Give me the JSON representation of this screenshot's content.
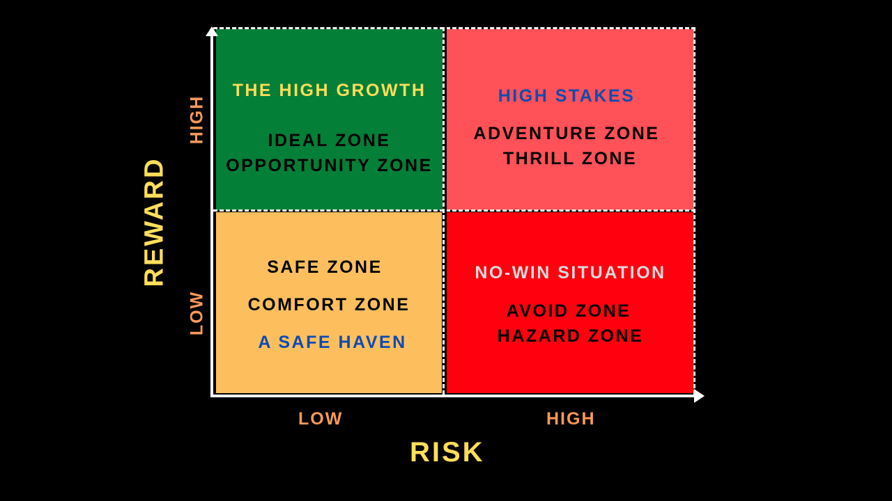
{
  "colors": {
    "background": "#000000",
    "high_growth": "#037F37",
    "high_stakes": "#FF5158",
    "safe_haven": "#FDBF5E",
    "no_win": "#FF000F",
    "axis_title": "#FFDE5A",
    "axis_tick": "#F79A5A",
    "blue_text": "#0F4BB0",
    "yellow_text": "#FFDE5A",
    "gray_text": "#DCDCDC"
  },
  "axes": {
    "x_title": "RISK",
    "y_title": "REWARD",
    "x_low": "LOW",
    "x_high": "HIGH",
    "y_low": "LOW",
    "y_high": "HIGH"
  },
  "quadrants": {
    "top_left": {
      "heading": "THE HIGH GROWTH",
      "line1": "IDEAL ZONE",
      "line2": "OPPORTUNITY ZONE"
    },
    "top_right": {
      "heading": "HIGH STAKES",
      "line1": "ADVENTURE ZONE",
      "line2": "THRILL ZONE"
    },
    "bottom_left": {
      "line1": "SAFE ZONE",
      "line2": "COMFORT ZONE",
      "heading": "A SAFE HAVEN"
    },
    "bottom_right": {
      "heading": "NO-WIN SITUATION",
      "line1": "AVOID ZONE",
      "line2": "HAZARD ZONE"
    }
  }
}
